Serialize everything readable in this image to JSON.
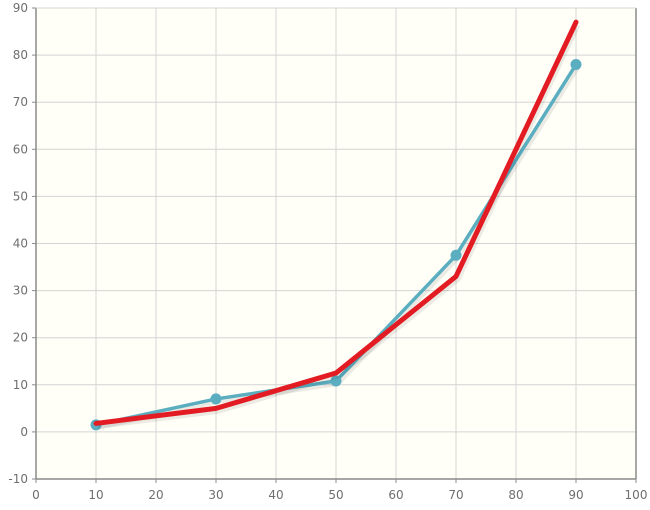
{
  "chart_data": {
    "type": "line",
    "title": "",
    "xlabel": "",
    "ylabel": "",
    "xlim": [
      0,
      100
    ],
    "ylim": [
      -10,
      90
    ],
    "x_ticks": [
      "0",
      "10",
      "20",
      "30",
      "40",
      "50",
      "60",
      "70",
      "80",
      "90",
      "100"
    ],
    "y_ticks": [
      "-10",
      "0",
      "10",
      "20",
      "30",
      "40",
      "50",
      "60",
      "70",
      "80",
      "90"
    ],
    "grid": true,
    "legend": "none",
    "series": [
      {
        "color": "#5aaec0",
        "markers": true,
        "points": [
          {
            "x": 10,
            "y": 1.5
          },
          {
            "x": 30,
            "y": 7
          },
          {
            "x": 50,
            "y": 10.8
          },
          {
            "x": 70,
            "y": 37.5
          },
          {
            "x": 90,
            "y": 78
          }
        ]
      },
      {
        "color": "#e31b23",
        "markers": false,
        "points": [
          {
            "x": 10,
            "y": 1.8
          },
          {
            "x": 30,
            "y": 5
          },
          {
            "x": 50,
            "y": 12.5
          },
          {
            "x": 70,
            "y": 33
          },
          {
            "x": 90,
            "y": 87
          }
        ]
      }
    ]
  },
  "colors": {
    "plot_background": "#fffff8",
    "grid": "#d4d4d4",
    "axis": "#8a8a8a",
    "tick_text": "#6f6f6f"
  }
}
